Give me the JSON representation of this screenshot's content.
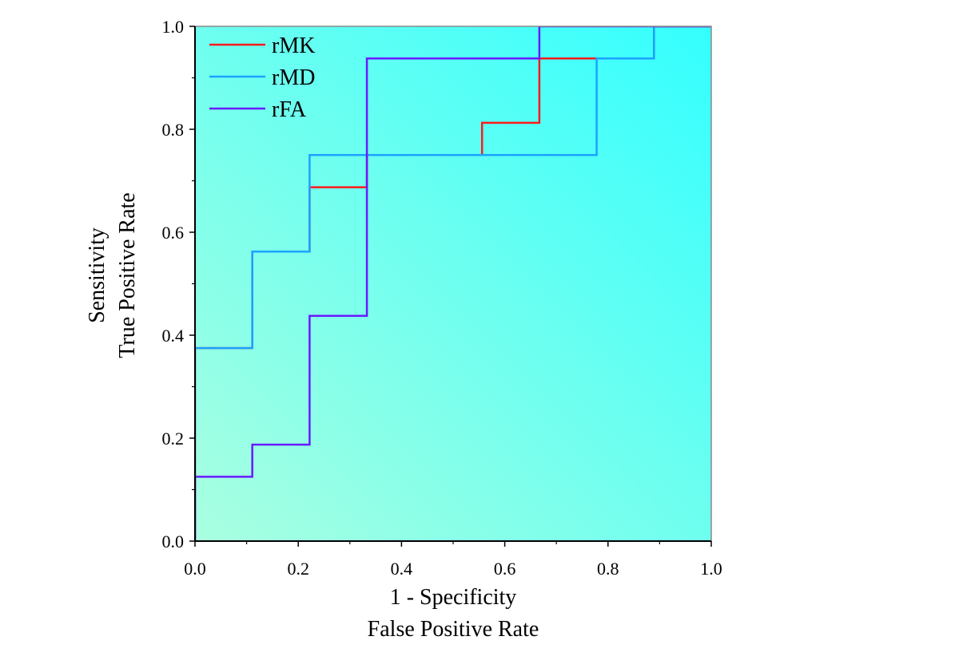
{
  "chart_data": {
    "type": "line",
    "step": true,
    "xlabel": [
      "1 - Specificity",
      "False Positive Rate"
    ],
    "ylabel": [
      "Sensitivity",
      "True Positive Rate"
    ],
    "xlim": [
      0,
      1
    ],
    "ylim": [
      0,
      1
    ],
    "xticks": [
      "0.0",
      "0.2",
      "0.4",
      "0.6",
      "0.8",
      "1.0"
    ],
    "yticks": [
      "0.0",
      "0.2",
      "0.4",
      "0.6",
      "0.8",
      "1.0"
    ],
    "grid": false,
    "legend_position": "top-left",
    "background_gradient": [
      "#aaffe0",
      "#33ffff"
    ],
    "series": [
      {
        "name": "rMK",
        "color": "#ff1a1a",
        "x": [
          0,
          0,
          0.111,
          0.111,
          0.222,
          0.222,
          0.333,
          0.333,
          0.556,
          0.556,
          0.667,
          0.667,
          0.778,
          0.778,
          0.889,
          0.889,
          1
        ],
        "y": [
          0,
          0.375,
          0.375,
          0.5625,
          0.5625,
          0.6875,
          0.6875,
          0.75,
          0.75,
          0.8125,
          0.8125,
          0.9375,
          0.9375,
          0.9375,
          0.9375,
          1,
          1
        ]
      },
      {
        "name": "rMD",
        "color": "#1aa3ff",
        "x": [
          0,
          0,
          0.111,
          0.111,
          0.222,
          0.222,
          0.778,
          0.778,
          0.889,
          0.889,
          1
        ],
        "y": [
          0,
          0.375,
          0.375,
          0.5625,
          0.5625,
          0.75,
          0.75,
          0.9375,
          0.9375,
          1,
          1
        ]
      },
      {
        "name": "rFA",
        "color": "#6a1aff",
        "x": [
          0,
          0,
          0.111,
          0.111,
          0.222,
          0.222,
          0.333,
          0.333,
          0.667,
          0.667,
          1
        ],
        "y": [
          0,
          0.125,
          0.125,
          0.1875,
          0.1875,
          0.4375,
          0.4375,
          0.9375,
          0.9375,
          1,
          1
        ]
      }
    ]
  }
}
